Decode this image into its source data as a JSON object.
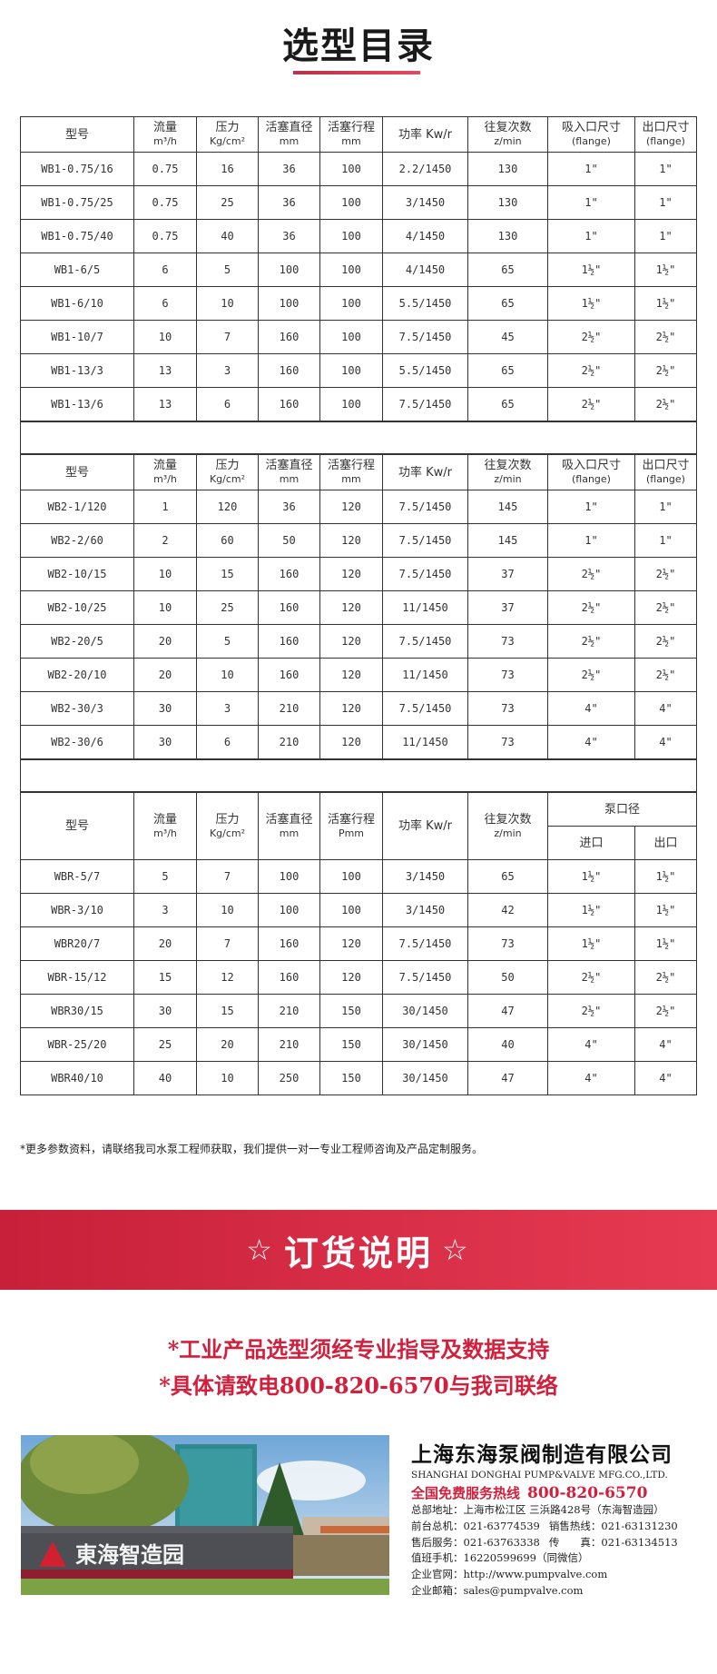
{
  "title": "选型目录",
  "accent_color": "#d21f3c",
  "headers_std": {
    "model": "型号",
    "flow": "流量",
    "flow_unit": "m³/h",
    "pressure": "压力",
    "pressure_unit": "Kg/cm²",
    "piston_dia": "活塞直径",
    "piston_dia_unit": "mm",
    "stroke": "活塞行程",
    "stroke_unit": "mm",
    "power": "功率 Kw/r",
    "reciprocation": "往复次数",
    "reciprocation_unit": "z/min",
    "inlet": "吸入口尺寸",
    "inlet_unit": "(flange)",
    "outlet": "出口尺寸",
    "outlet_unit": "(flange)"
  },
  "headers_wbr": {
    "model": "型号",
    "flow": "流量",
    "flow_unit": "m³/h",
    "pressure": "压力",
    "pressure_unit": "Kg/cm²",
    "piston_dia": "活塞直径",
    "piston_dia_unit": "mm",
    "stroke": "活塞行程",
    "stroke_unit": "Pmm",
    "power": "功率 Kw/r",
    "reciprocation": "往复次数",
    "reciprocation_unit": "z/min",
    "port": "泵口径",
    "inlet": "进口",
    "outlet": "出口"
  },
  "table_wb1": [
    [
      "WB1-0.75/16",
      "0.75",
      "16",
      "36",
      "100",
      "2.2/1450",
      "130",
      "1\"",
      "1\""
    ],
    [
      "WB1-0.75/25",
      "0.75",
      "25",
      "36",
      "100",
      "3/1450",
      "130",
      "1\"",
      "1\""
    ],
    [
      "WB1-0.75/40",
      "0.75",
      "40",
      "36",
      "100",
      "4/1450",
      "130",
      "1\"",
      "1\""
    ],
    [
      "WB1-6/5",
      "6",
      "5",
      "100",
      "100",
      "4/1450",
      "65",
      "1½\"",
      "1½\""
    ],
    [
      "WB1-6/10",
      "6",
      "10",
      "100",
      "100",
      "5.5/1450",
      "65",
      "1½\"",
      "1½\""
    ],
    [
      "WB1-10/7",
      "10",
      "7",
      "160",
      "100",
      "7.5/1450",
      "45",
      "2½\"",
      "2½\""
    ],
    [
      "WB1-13/3",
      "13",
      "3",
      "160",
      "100",
      "5.5/1450",
      "65",
      "2½\"",
      "2½\""
    ],
    [
      "WB1-13/6",
      "13",
      "6",
      "160",
      "100",
      "7.5/1450",
      "65",
      "2½\"",
      "2½\""
    ]
  ],
  "table_wb2": [
    [
      "WB2-1/120",
      "1",
      "120",
      "36",
      "120",
      "7.5/1450",
      "145",
      "1\"",
      "1\""
    ],
    [
      "WB2-2/60",
      "2",
      "60",
      "50",
      "120",
      "7.5/1450",
      "145",
      "1\"",
      "1\""
    ],
    [
      "WB2-10/15",
      "10",
      "15",
      "160",
      "120",
      "7.5/1450",
      "37",
      "2½\"",
      "2½\""
    ],
    [
      "WB2-10/25",
      "10",
      "25",
      "160",
      "120",
      "11/1450",
      "37",
      "2½\"",
      "2½\""
    ],
    [
      "WB2-20/5",
      "20",
      "5",
      "160",
      "120",
      "7.5/1450",
      "73",
      "2½\"",
      "2½\""
    ],
    [
      "WB2-20/10",
      "20",
      "10",
      "160",
      "120",
      "11/1450",
      "73",
      "2½\"",
      "2½\""
    ],
    [
      "WB2-30/3",
      "30",
      "3",
      "210",
      "120",
      "7.5/1450",
      "73",
      "4\"",
      "4\""
    ],
    [
      "WB2-30/6",
      "30",
      "6",
      "210",
      "120",
      "11/1450",
      "73",
      "4\"",
      "4\""
    ]
  ],
  "table_wbr": [
    [
      "WBR-5/7",
      "5",
      "7",
      "100",
      "100",
      "3/1450",
      "65",
      "1½\"",
      "1½\""
    ],
    [
      "WBR-3/10",
      "3",
      "10",
      "100",
      "100",
      "3/1450",
      "42",
      "1½\"",
      "1½\""
    ],
    [
      "WBR20/7",
      "20",
      "7",
      "160",
      "120",
      "7.5/1450",
      "73",
      "1½\"",
      "1½\""
    ],
    [
      "WBR-15/12",
      "15",
      "12",
      "160",
      "120",
      "7.5/1450",
      "50",
      "2½\"",
      "2½\""
    ],
    [
      "WBR30/15",
      "30",
      "15",
      "210",
      "150",
      "30/1450",
      "47",
      "2½\"",
      "2½\""
    ],
    [
      "WBR-25/20",
      "25",
      "20",
      "210",
      "150",
      "30/1450",
      "40",
      "4\"",
      "4\""
    ],
    [
      "WBR40/10",
      "40",
      "10",
      "250",
      "150",
      "30/1450",
      "47",
      "4\"",
      "4\""
    ]
  ],
  "note": "*更多参数资料，请联络我司水泵工程师获取，我们提供一对一专业工程师咨询及产品定制服务。",
  "banner": {
    "star": "☆",
    "title": "订货说明"
  },
  "order_lines": [
    "*工业产品选型须经专业指导及数据支持",
    "*具体请致电800-820-6570与我司联络"
  ],
  "photo_sign": "東海智造园",
  "company": {
    "name": "上海东海泵阀制造有限公司",
    "name_en": "SHANGHAI DONGHAI PUMP&VALVE MFG.CO.,LTD.",
    "hotline_label": "全国免费服务热线",
    "hotline": "800-820-6570",
    "address_label": "总部地址：",
    "address": "上海市松江区 三浜路428号（东海智造园）",
    "front_label": "前台总机：",
    "front": "021-63774539",
    "sales_label": "销售热线：",
    "sales": "021-63131230",
    "service_label": "售后服务：",
    "service": "021-63763338",
    "fax_label": "传　　真：",
    "fax": "021-63134513",
    "duty_label": "值班手机：",
    "duty": "16220599699（同微信）",
    "web_label": "企业官网：",
    "web": "http://www.pumpvalve.com",
    "email_label": "企业邮箱：",
    "email": "sales@pumpvalve.com"
  }
}
